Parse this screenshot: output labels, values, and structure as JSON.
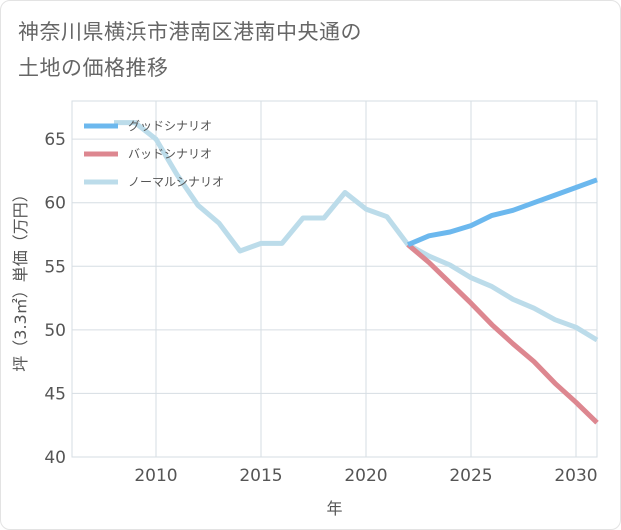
{
  "title_lines": [
    "神奈川県横浜市港南区港南中央通の",
    "土地の価格推移"
  ],
  "chart_data": {
    "type": "line",
    "xlabel": "年",
    "ylabel": "坪（3.3㎡）単価（万円）",
    "xlim": [
      2006,
      2031
    ],
    "ylim": [
      40,
      68
    ],
    "x_ticks": [
      2010,
      2015,
      2020,
      2025,
      2030
    ],
    "y_ticks": [
      40,
      45,
      50,
      55,
      60,
      65
    ],
    "x_tick_labels": [
      "2010",
      "2015",
      "2020",
      "2025",
      "2030"
    ],
    "y_tick_labels": [
      "40",
      "45",
      "50",
      "55",
      "60",
      "65"
    ],
    "grid": true,
    "legend_position": "top-left",
    "series": [
      {
        "name": "グッドシナリオ",
        "color": "#6cb8ee",
        "x": [
          2022,
          2023,
          2024,
          2025,
          2026,
          2027,
          2028,
          2029,
          2030,
          2031
        ],
        "y": [
          56.7,
          57.4,
          57.7,
          58.2,
          59.0,
          59.4,
          60.0,
          60.6,
          61.2,
          61.8
        ]
      },
      {
        "name": "バッドシナリオ",
        "color": "#dd8790",
        "x": [
          2022,
          2023,
          2024,
          2025,
          2026,
          2027,
          2028,
          2029,
          2030,
          2031
        ],
        "y": [
          56.7,
          55.3,
          53.7,
          52.1,
          50.4,
          48.9,
          47.5,
          45.8,
          44.3,
          42.7
        ]
      },
      {
        "name": "ノーマルシナリオ",
        "color": "#bcdcea",
        "x": [
          2008,
          2009,
          2010,
          2011,
          2012,
          2013,
          2014,
          2015,
          2016,
          2017,
          2018,
          2019,
          2020,
          2021,
          2022,
          2023,
          2024,
          2025,
          2026,
          2027,
          2028,
          2029,
          2030,
          2031
        ],
        "y": [
          66.3,
          66.3,
          65.0,
          62.2,
          59.8,
          58.4,
          56.2,
          56.8,
          56.8,
          58.8,
          58.8,
          60.8,
          59.5,
          58.9,
          56.7,
          55.8,
          55.1,
          54.1,
          53.4,
          52.4,
          51.7,
          50.8,
          50.2,
          49.2
        ]
      }
    ]
  }
}
